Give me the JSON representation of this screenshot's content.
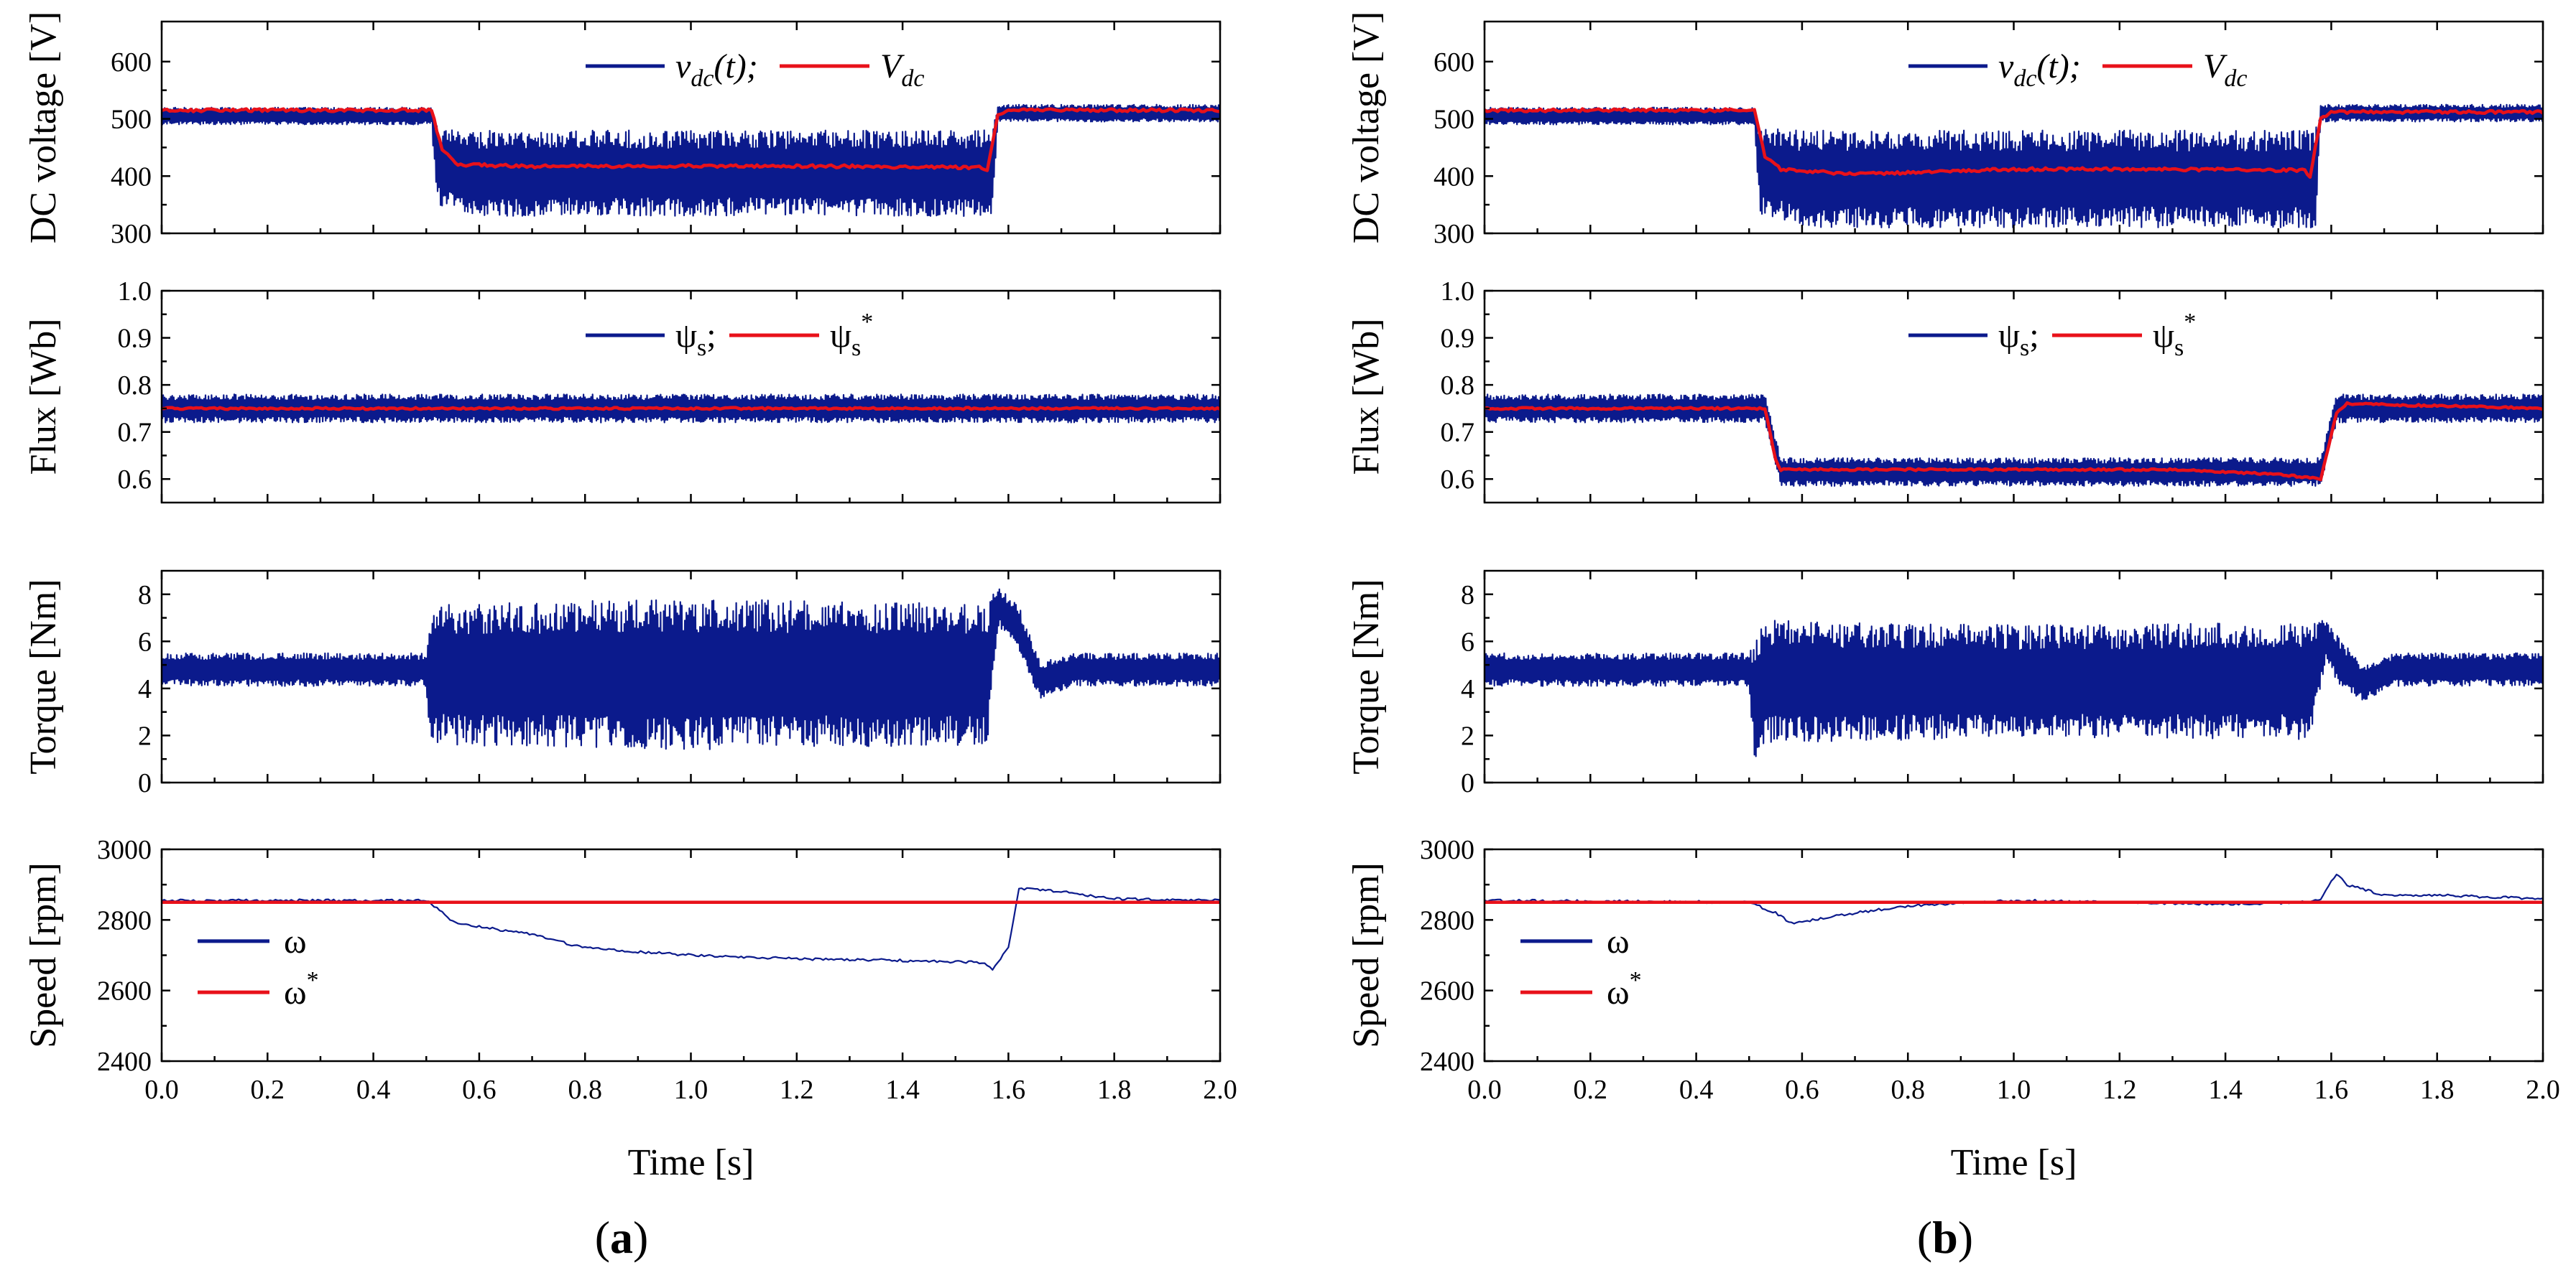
{
  "colors": {
    "measured": "#0b1a8c",
    "reference": "#e8111a",
    "axis": "#000000"
  },
  "chart_data": [
    {
      "panel": "a",
      "panel_label": "(a)",
      "type": "line",
      "xlabel": "Time [s]",
      "xlim": [
        0,
        2
      ],
      "xticks": [
        0,
        0.2,
        0.4,
        0.6,
        0.8,
        1.0,
        1.2,
        1.4,
        1.6,
        1.8,
        2.0
      ],
      "xtick_labels": [
        "0.0",
        "0.2",
        "0.4",
        "0.6",
        "0.8",
        "1.0",
        "1.2",
        "1.4",
        "1.6",
        "1.8",
        "2.0"
      ],
      "subplots": [
        {
          "id": "dc",
          "ylabel": "DC voltage [V]",
          "ylim": [
            300,
            670
          ],
          "yticks": [
            300,
            400,
            500,
            600
          ],
          "legend": {
            "measured": "vdc(t);",
            "reference": "Vdc"
          },
          "series": [
            {
              "name": "vdc(t)",
              "role": "measured",
              "x": [
                0.0,
                0.51,
                0.52,
                0.6,
                1.0,
                1.4,
                1.57,
                1.58,
                2.0
              ],
              "center": [
                505,
                505,
                420,
                405,
                405,
                405,
                405,
                510,
                510
              ],
              "ripple": [
                15,
                15,
                70,
                75,
                75,
                75,
                75,
                15,
                15
              ]
            },
            {
              "name": "Vdc",
              "role": "reference",
              "x": [
                0.0,
                0.51,
                0.53,
                0.56,
                0.7,
                1.0,
                1.3,
                1.55,
                1.56,
                1.58,
                1.6,
                2.0
              ],
              "values": [
                515,
                515,
                445,
                420,
                417,
                418,
                417,
                415,
                410,
                505,
                515,
                515
              ]
            }
          ]
        },
        {
          "id": "flux",
          "ylabel": "Flux [Wb]",
          "ylim": [
            0.55,
            1.0
          ],
          "yticks": [
            0.6,
            0.7,
            0.8,
            0.9,
            1.0
          ],
          "legend": {
            "measured": "ψs;",
            "reference": "ψs*"
          },
          "series": [
            {
              "name": "ψs",
              "role": "measured",
              "x": [
                0.0,
                2.0
              ],
              "center": [
                0.75,
                0.75
              ],
              "ripple": [
                0.03,
                0.03
              ]
            },
            {
              "name": "ψs*",
              "role": "reference",
              "x": [
                0.0,
                2.0
              ],
              "values": [
                0.75,
                0.75
              ]
            }
          ]
        },
        {
          "id": "torque",
          "ylabel": "Torque [Nm]",
          "ylim": [
            0,
            9
          ],
          "yticks": [
            0,
            2,
            4,
            6,
            8
          ],
          "series": [
            {
              "name": "T",
              "role": "measured",
              "x": [
                0.0,
                0.5,
                0.51,
                0.52,
                1.0,
                1.56,
                1.58,
                1.62,
                1.66,
                1.72,
                2.0
              ],
              "center": [
                4.8,
                4.8,
                4.0,
                4.6,
                4.6,
                4.6,
                7.5,
                6.5,
                4.3,
                4.8,
                4.8
              ],
              "ripple": [
                0.7,
                0.7,
                3.5,
                3.0,
                3.2,
                3.0,
                0.8,
                1.0,
                0.8,
                0.7,
                0.7
              ]
            }
          ]
        },
        {
          "id": "speed",
          "ylabel": "Speed [rpm]",
          "ylim": [
            2400,
            3000
          ],
          "yticks": [
            2400,
            2600,
            2800,
            3000
          ],
          "legend": {
            "measured": "ω",
            "reference": "ω*"
          },
          "series": [
            {
              "name": "ω",
              "role": "measured",
              "x": [
                0.0,
                0.5,
                0.52,
                0.55,
                0.6,
                0.7,
                0.8,
                1.0,
                1.2,
                1.4,
                1.55,
                1.57,
                1.6,
                1.62,
                1.7,
                1.8,
                2.0
              ],
              "values": [
                2855,
                2855,
                2835,
                2795,
                2780,
                2760,
                2720,
                2700,
                2690,
                2685,
                2680,
                2660,
                2720,
                2890,
                2880,
                2860,
                2855
              ]
            },
            {
              "name": "ω*",
              "role": "reference",
              "x": [
                0.0,
                2.0
              ],
              "values": [
                2850,
                2850
              ]
            }
          ]
        }
      ]
    },
    {
      "panel": "b",
      "panel_label": "(b)",
      "type": "line",
      "xlabel": "Time [s]",
      "xlim": [
        0,
        2
      ],
      "xticks": [
        0,
        0.2,
        0.4,
        0.6,
        0.8,
        1.0,
        1.2,
        1.4,
        1.6,
        1.8,
        2.0
      ],
      "xtick_labels": [
        "0.0",
        "0.2",
        "0.4",
        "0.6",
        "0.8",
        "1.0",
        "1.2",
        "1.4",
        "1.6",
        "1.8",
        "2.0"
      ],
      "subplots": [
        {
          "id": "dc",
          "ylabel": "DC voltage [V]",
          "ylim": [
            300,
            670
          ],
          "yticks": [
            300,
            400,
            500,
            600
          ],
          "legend": {
            "measured": "vdc(t);",
            "reference": "Vdc"
          },
          "series": [
            {
              "name": "vdc(t)",
              "role": "measured",
              "x": [
                0.0,
                0.51,
                0.52,
                0.6,
                1.0,
                1.4,
                1.57,
                1.58,
                2.0
              ],
              "center": [
                505,
                505,
                410,
                395,
                395,
                395,
                395,
                510,
                510
              ],
              "ripple": [
                15,
                15,
                75,
                85,
                85,
                85,
                85,
                15,
                15
              ]
            },
            {
              "name": "Vdc",
              "role": "reference",
              "x": [
                0.0,
                0.51,
                0.53,
                0.56,
                0.7,
                1.0,
                1.3,
                1.55,
                1.56,
                1.58,
                1.6,
                2.0
              ],
              "values": [
                515,
                515,
                435,
                412,
                403,
                412,
                412,
                410,
                400,
                500,
                512,
                512
              ]
            }
          ]
        },
        {
          "id": "flux",
          "ylabel": "Flux [Wb]",
          "ylim": [
            0.55,
            1.0
          ],
          "yticks": [
            0.6,
            0.7,
            0.8,
            0.9,
            1.0
          ],
          "legend": {
            "measured": "ψs;",
            "reference": "ψs*"
          },
          "series": [
            {
              "name": "ψs",
              "role": "measured",
              "x": [
                0.0,
                0.53,
                0.56,
                1.58,
                1.61,
                2.0
              ],
              "center": [
                0.75,
                0.75,
                0.615,
                0.615,
                0.75,
                0.75
              ],
              "ripple": [
                0.03,
                0.03,
                0.03,
                0.03,
                0.03,
                0.03
              ]
            },
            {
              "name": "ψs*",
              "role": "reference",
              "x": [
                0.0,
                0.53,
                0.55,
                0.56,
                1.3,
                1.5,
                1.58,
                1.61,
                1.63,
                2.0
              ],
              "values": [
                0.75,
                0.75,
                0.64,
                0.62,
                0.62,
                0.61,
                0.6,
                0.74,
                0.76,
                0.75
              ]
            }
          ]
        },
        {
          "id": "torque",
          "ylabel": "Torque [Nm]",
          "ylim": [
            0,
            9
          ],
          "yticks": [
            0,
            2,
            4,
            6,
            8
          ],
          "series": [
            {
              "name": "T",
              "role": "measured",
              "x": [
                0.0,
                0.5,
                0.51,
                0.53,
                1.0,
                1.56,
                1.59,
                1.62,
                1.66,
                1.72,
                2.0
              ],
              "center": [
                4.8,
                4.8,
                3.5,
                4.3,
                4.3,
                4.3,
                6.0,
                5.0,
                4.2,
                4.8,
                4.8
              ],
              "ripple": [
                0.7,
                0.7,
                2.5,
                2.6,
                2.4,
                2.5,
                0.9,
                1.0,
                0.8,
                0.7,
                0.7
              ]
            }
          ]
        },
        {
          "id": "speed",
          "ylabel": "Speed [rpm]",
          "ylim": [
            2400,
            3000
          ],
          "yticks": [
            2400,
            2600,
            2800,
            3000
          ],
          "legend": {
            "measured": "ω",
            "reference": "ω*"
          },
          "series": [
            {
              "name": "ω",
              "role": "measured",
              "x": [
                0.0,
                0.5,
                0.55,
                0.58,
                0.7,
                0.8,
                1.0,
                1.2,
                1.4,
                1.55,
                1.58,
                1.61,
                1.63,
                1.7,
                1.8,
                2.0
              ],
              "values": [
                2855,
                2850,
                2820,
                2790,
                2820,
                2840,
                2855,
                2850,
                2845,
                2850,
                2860,
                2930,
                2900,
                2870,
                2870,
                2860
              ]
            },
            {
              "name": "ω*",
              "role": "reference",
              "x": [
                0.0,
                2.0
              ],
              "values": [
                2850,
                2850
              ]
            }
          ]
        }
      ]
    }
  ]
}
